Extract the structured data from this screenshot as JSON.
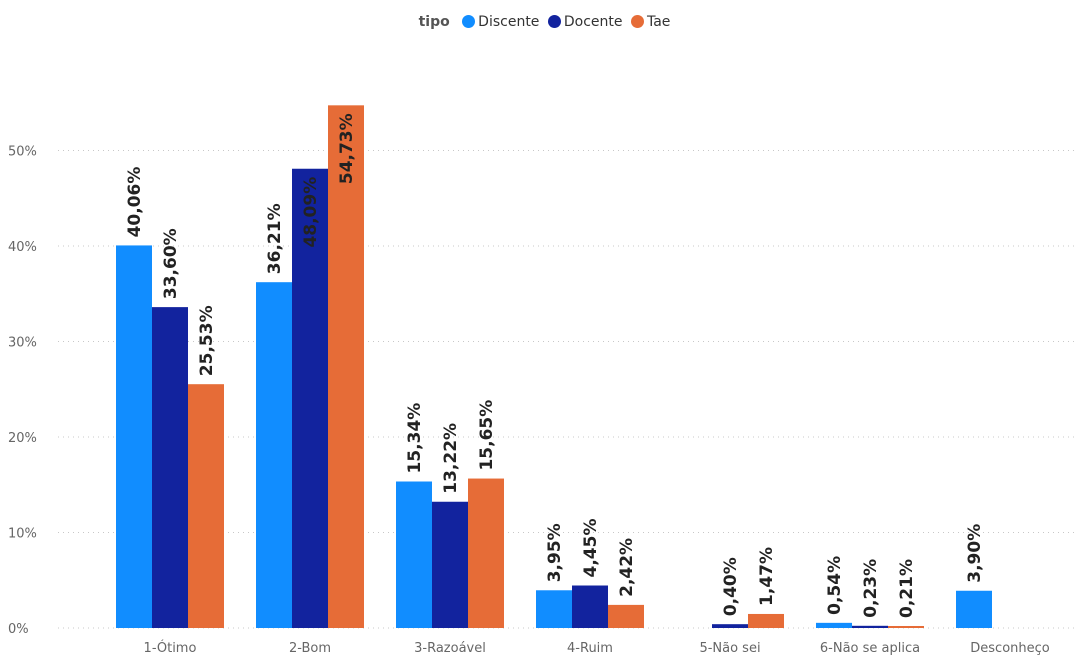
{
  "chart_data": {
    "type": "bar",
    "legend_title": "tipo",
    "legend_position": "top-center",
    "categories": [
      "1-Ótimo",
      "2-Bom",
      "3-Razoável",
      "4-Ruim",
      "5-Não sei",
      "6-Não se aplica",
      "Desconheço"
    ],
    "series": [
      {
        "name": "Discente",
        "color": "#118DFF",
        "values": [
          40.06,
          36.21,
          15.34,
          3.95,
          null,
          0.54,
          3.9
        ],
        "labels": [
          "40,06%",
          "36,21%",
          "15,34%",
          "3,95%",
          "",
          "0,54%",
          "3,90%"
        ]
      },
      {
        "name": "Docente",
        "color": "#12239E",
        "values": [
          33.6,
          48.09,
          13.22,
          4.45,
          0.4,
          0.23,
          null
        ],
        "labels": [
          "33,60%",
          "48,09%",
          "13,22%",
          "4,45%",
          "0,40%",
          "0,23%",
          ""
        ]
      },
      {
        "name": "Tae",
        "color": "#E66C37",
        "values": [
          25.53,
          54.73,
          15.65,
          2.42,
          1.47,
          0.21,
          null
        ],
        "labels": [
          "25,53%",
          "54,73%",
          "15,65%",
          "2,42%",
          "1,47%",
          "0,21%",
          ""
        ]
      }
    ],
    "y_ticks": [
      "0%",
      "10%",
      "20%",
      "30%",
      "40%",
      "50%"
    ],
    "ylim": [
      0,
      60
    ],
    "grid": true
  }
}
